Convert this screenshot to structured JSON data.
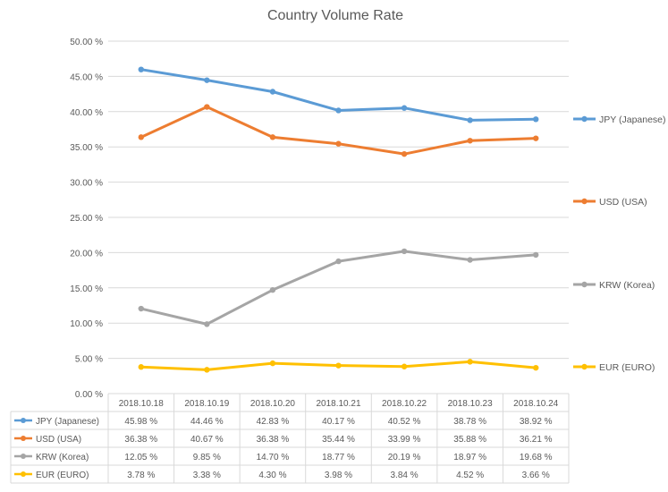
{
  "chart_data": {
    "type": "line",
    "title": "Country Volume Rate",
    "categories": [
      "2018.10.18",
      "2018.10.19",
      "2018.10.20",
      "2018.10.21",
      "2018.10.22",
      "2018.10.23",
      "2018.10.24"
    ],
    "y_ticks": [
      "0.00 %",
      "5.00 %",
      "10.00 %",
      "15.00 %",
      "20.00 %",
      "25.00 %",
      "30.00 %",
      "35.00 %",
      "40.00 %",
      "45.00 %",
      "50.00 %"
    ],
    "ylim": [
      0,
      50
    ],
    "grid": true,
    "legend_position": "right",
    "data_table": true,
    "series": [
      {
        "name": "JPY (Japanese)",
        "color": "#5B9BD5",
        "values": [
          45.98,
          44.46,
          42.83,
          40.17,
          40.52,
          38.78,
          38.92
        ],
        "labels": [
          "45.98 %",
          "44.46 %",
          "42.83 %",
          "40.17 %",
          "40.52 %",
          "38.78 %",
          "38.92 %"
        ]
      },
      {
        "name": "USD (USA)",
        "color": "#ED7D31",
        "values": [
          36.38,
          40.67,
          36.38,
          35.44,
          33.99,
          35.88,
          36.21
        ],
        "labels": [
          "36.38 %",
          "40.67 %",
          "36.38 %",
          "35.44 %",
          "33.99 %",
          "35.88 %",
          "36.21 %"
        ]
      },
      {
        "name": "KRW (Korea)",
        "color": "#A5A5A5",
        "values": [
          12.05,
          9.85,
          14.7,
          18.77,
          20.19,
          18.97,
          19.68
        ],
        "labels": [
          "12.05 %",
          "9.85 %",
          "14.70 %",
          "18.77 %",
          "20.19 %",
          "18.97 %",
          "19.68 %"
        ]
      },
      {
        "name": "EUR (EURO)",
        "color": "#FFC000",
        "values": [
          3.78,
          3.38,
          4.3,
          3.98,
          3.84,
          4.52,
          3.66
        ],
        "labels": [
          "3.78 %",
          "3.38 %",
          "4.30 %",
          "3.98 %",
          "3.84 %",
          "4.52 %",
          "3.66 %"
        ]
      }
    ]
  }
}
